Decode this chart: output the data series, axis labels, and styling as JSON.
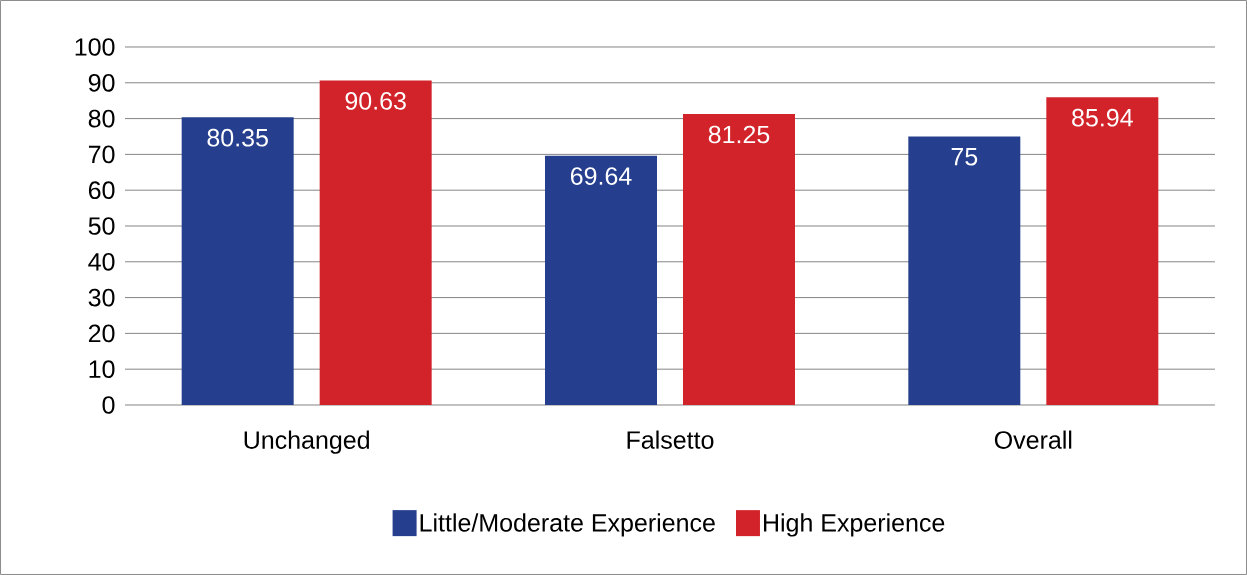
{
  "chart_data": {
    "type": "bar",
    "categories": [
      "Unchanged",
      "Falsetto",
      "Overall"
    ],
    "series": [
      {
        "name": "Little/Moderate Experience",
        "color": "#253f8e",
        "values": [
          80.35,
          69.64,
          75
        ]
      },
      {
        "name": "High Experience",
        "color": "#d2232a",
        "values": [
          90.63,
          81.25,
          85.94
        ]
      }
    ],
    "ylim": [
      0,
      100
    ],
    "yticks": [
      0,
      10,
      20,
      30,
      40,
      50,
      60,
      70,
      80,
      90,
      100
    ],
    "grid": "y",
    "legend": "bottom",
    "data_labels": true
  }
}
